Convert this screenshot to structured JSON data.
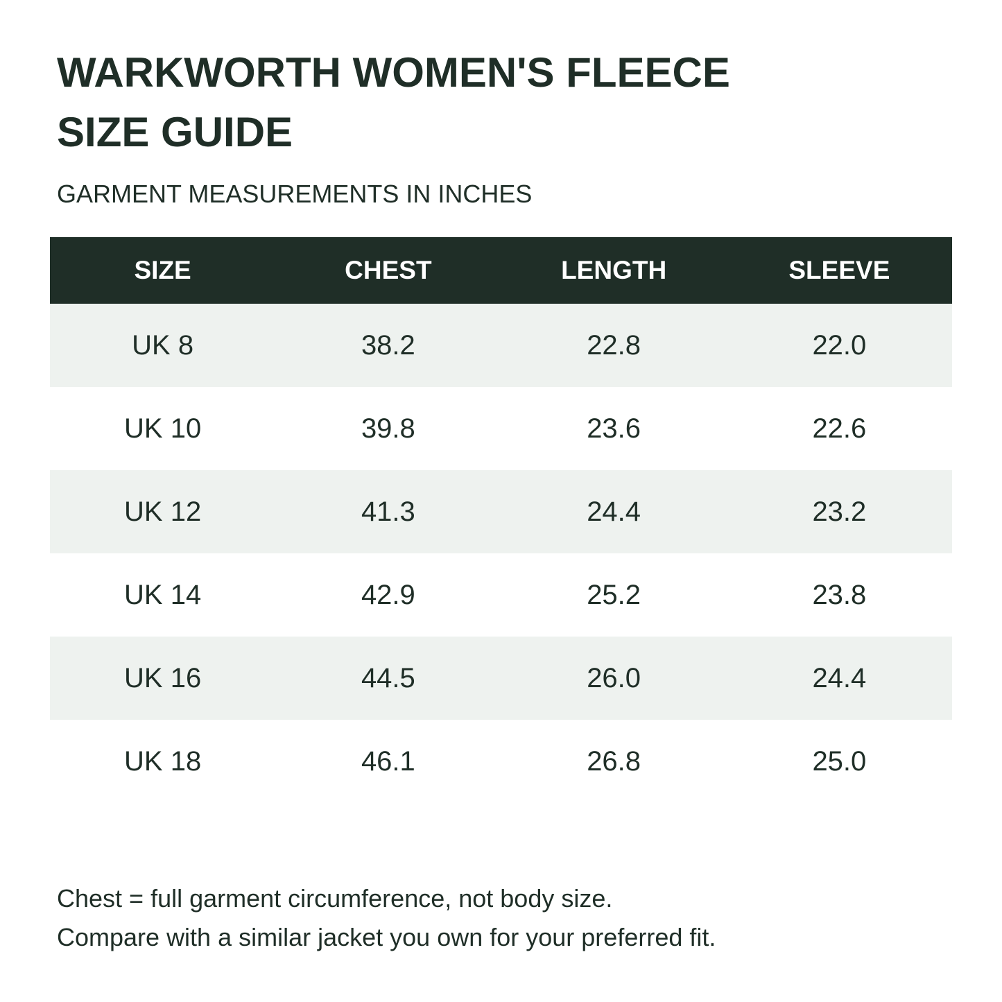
{
  "title": {
    "line1": "WARKWORTH WOMEN'S FLEECE",
    "line2": "SIZE GUIDE"
  },
  "subtitle": "GARMENT MEASUREMENTS IN INCHES",
  "table": {
    "headers": [
      "SIZE",
      "CHEST",
      "LENGTH",
      "SLEEVE"
    ],
    "rows": [
      [
        "UK 8",
        "38.2",
        "22.8",
        "22.0"
      ],
      [
        "UK 10",
        "39.8",
        "23.6",
        "22.6"
      ],
      [
        "UK 12",
        "41.3",
        "24.4",
        "23.2"
      ],
      [
        "UK 14",
        "42.9",
        "25.2",
        "23.8"
      ],
      [
        "UK 16",
        "44.5",
        "26.0",
        "24.4"
      ],
      [
        "UK 18",
        "46.1",
        "26.8",
        "25.0"
      ]
    ]
  },
  "notes": [
    "Chest = full garment circumference, not body size.",
    "Compare with a similar jacket you own for your preferred fit."
  ],
  "colors": {
    "header_bg": "#1f2e27",
    "stripe_bg": "#eef2ef",
    "text": "#1f2e27"
  }
}
